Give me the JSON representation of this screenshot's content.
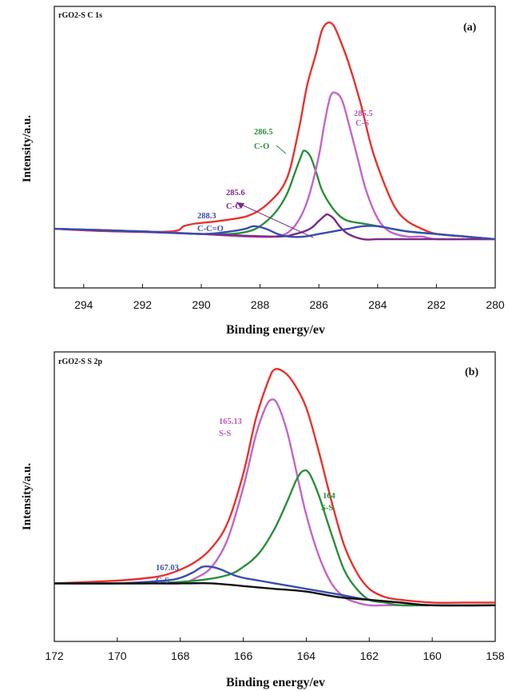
{
  "chart_data": [
    {
      "type": "line",
      "panel_label": "(a)",
      "corner_label": "rGO2-S   C 1s",
      "xlabel": "Binding energy/ev",
      "ylabel": "Intensity/a.u.",
      "xlim": [
        295,
        280
      ],
      "x_reversed": true,
      "ylim": [
        0,
        1
      ],
      "xticks": [
        294,
        292,
        290,
        288,
        286,
        284,
        282,
        280
      ],
      "grid": false,
      "legend": "none",
      "series": [
        {
          "color": "#e8322e",
          "x": [
            295,
            293,
            291,
            290.6,
            290.2,
            289.4,
            288.4,
            287.7,
            287.1,
            286.7,
            286.4,
            286.1,
            285.9,
            285.7,
            285.5,
            285.3,
            285.0,
            284.6,
            284.2,
            283.8,
            283.4,
            283.0,
            282.5,
            282.0,
            281.0,
            280.0
          ],
          "y": [
            0.19,
            0.18,
            0.18,
            0.2,
            0.21,
            0.22,
            0.24,
            0.29,
            0.38,
            0.56,
            0.74,
            0.86,
            0.95,
            0.98,
            0.97,
            0.92,
            0.83,
            0.68,
            0.5,
            0.37,
            0.27,
            0.22,
            0.19,
            0.17,
            0.16,
            0.15
          ]
        },
        {
          "color": "#2a8f3a",
          "x": [
            295,
            292,
            290,
            289.0,
            288.4,
            288.0,
            287.5,
            287.1,
            286.8,
            286.6,
            286.5,
            286.3,
            286.1,
            285.9,
            285.6,
            285.3,
            285.0,
            284.5,
            284.0,
            283.0,
            282.0,
            281.0,
            280.0
          ],
          "y": [
            0.19,
            0.18,
            0.17,
            0.17,
            0.18,
            0.2,
            0.25,
            0.32,
            0.41,
            0.47,
            0.49,
            0.47,
            0.41,
            0.34,
            0.28,
            0.24,
            0.22,
            0.21,
            0.2,
            0.18,
            0.17,
            0.16,
            0.15
          ]
        },
        {
          "color": "#c266c6",
          "x": [
            295,
            292,
            290,
            288.5,
            287.5,
            287.0,
            286.6,
            286.3,
            286.0,
            285.8,
            285.6,
            285.4,
            285.2,
            285.0,
            284.7,
            284.4,
            284.0,
            283.6,
            283.0,
            282.5,
            282.0,
            281.0,
            280.0
          ],
          "y": [
            0.19,
            0.18,
            0.17,
            0.16,
            0.16,
            0.18,
            0.24,
            0.33,
            0.47,
            0.6,
            0.7,
            0.71,
            0.68,
            0.6,
            0.47,
            0.34,
            0.23,
            0.18,
            0.16,
            0.16,
            0.15,
            0.15,
            0.15
          ]
        },
        {
          "color": "#7a2a88",
          "x": [
            295,
            290,
            287.5,
            286.8,
            286.3,
            286.0,
            285.8,
            285.7,
            285.5,
            285.3,
            285.0,
            284.5,
            284.0,
            283.0,
            282.0,
            280.0
          ],
          "y": [
            0.19,
            0.17,
            0.16,
            0.17,
            0.19,
            0.22,
            0.24,
            0.245,
            0.23,
            0.2,
            0.17,
            0.15,
            0.15,
            0.15,
            0.15,
            0.15
          ]
        },
        {
          "color": "#3a4cb0",
          "x": [
            295,
            292,
            290,
            289.0,
            288.5,
            288.2,
            287.8,
            287.4,
            287.0,
            286.5,
            286.0,
            285.5,
            285.0,
            284.5,
            284.0,
            283.5,
            283.0,
            282.0,
            281.0,
            280.0
          ],
          "y": [
            0.19,
            0.18,
            0.17,
            0.18,
            0.19,
            0.2,
            0.19,
            0.17,
            0.16,
            0.16,
            0.17,
            0.18,
            0.19,
            0.2,
            0.2,
            0.19,
            0.18,
            0.17,
            0.16,
            0.15
          ]
        }
      ],
      "annotations": [
        {
          "value": "285.5",
          "name": "C-S",
          "color": "#b858b8"
        },
        {
          "value": "286.5",
          "name": "C-O",
          "color": "#2a8f3a"
        },
        {
          "value": "285.6",
          "name": "C-C",
          "color": "#7a2a88"
        },
        {
          "value": "288.3",
          "name": "C-C=O",
          "color": "#3a4cb0"
        }
      ]
    },
    {
      "type": "line",
      "panel_label": "(b)",
      "corner_label": "rGO2-S   S 2p",
      "xlabel": "Binding energy/ev",
      "ylabel": "Intensity/a.u.",
      "xlim": [
        172,
        158
      ],
      "x_reversed": true,
      "ylim": [
        0,
        1
      ],
      "xticks": [
        172,
        170,
        168,
        166,
        164,
        162,
        160,
        158
      ],
      "grid": false,
      "legend": "none",
      "series": [
        {
          "color": "#e8322e",
          "x": [
            172,
            170,
            169,
            168.5,
            168.0,
            167.5,
            167.0,
            166.5,
            166.0,
            165.6,
            165.2,
            165.0,
            164.7,
            164.4,
            164.0,
            163.6,
            163.2,
            162.8,
            162.4,
            162.0,
            161.5,
            161.0,
            160.0,
            159.0,
            158.0
          ],
          "y": [
            0.2,
            0.21,
            0.22,
            0.23,
            0.25,
            0.28,
            0.33,
            0.42,
            0.6,
            0.8,
            0.94,
            0.98,
            0.97,
            0.93,
            0.84,
            0.68,
            0.5,
            0.34,
            0.24,
            0.18,
            0.15,
            0.14,
            0.13,
            0.13,
            0.13
          ]
        },
        {
          "color": "#c266c6",
          "x": [
            172,
            169,
            168.0,
            167.5,
            167.0,
            166.5,
            166.0,
            165.6,
            165.3,
            165.1,
            164.9,
            164.6,
            164.3,
            164.0,
            163.6,
            163.2,
            162.8,
            162.4,
            162.0,
            161.5,
            161.0,
            160.0,
            158.0
          ],
          "y": [
            0.2,
            0.2,
            0.2,
            0.22,
            0.26,
            0.36,
            0.55,
            0.74,
            0.84,
            0.87,
            0.85,
            0.75,
            0.6,
            0.45,
            0.3,
            0.2,
            0.15,
            0.13,
            0.12,
            0.12,
            0.12,
            0.12,
            0.12
          ]
        },
        {
          "color": "#2a8f3a",
          "x": [
            172,
            169,
            167.5,
            166.5,
            166.0,
            165.5,
            165.0,
            164.6,
            164.3,
            164.1,
            163.9,
            163.6,
            163.2,
            162.8,
            162.4,
            162.0,
            161.5,
            161.0,
            160.0,
            158.0
          ],
          "y": [
            0.2,
            0.2,
            0.21,
            0.23,
            0.26,
            0.31,
            0.4,
            0.5,
            0.58,
            0.61,
            0.6,
            0.52,
            0.38,
            0.25,
            0.18,
            0.14,
            0.13,
            0.12,
            0.12,
            0.12
          ]
        },
        {
          "color": "#3a4cb0",
          "x": [
            172,
            170,
            168.5,
            168.0,
            167.6,
            167.3,
            167.0,
            166.7,
            166.3,
            166.0,
            165.5,
            165.0,
            164.0,
            163.0,
            162.0,
            161.0,
            160.0,
            158.0
          ],
          "y": [
            0.2,
            0.2,
            0.21,
            0.22,
            0.24,
            0.26,
            0.26,
            0.25,
            0.23,
            0.22,
            0.21,
            0.2,
            0.18,
            0.16,
            0.14,
            0.13,
            0.12,
            0.12
          ]
        },
        {
          "color": "#111111",
          "x": [
            172,
            170,
            168,
            167,
            166,
            165,
            164,
            163,
            162,
            161,
            160,
            158
          ],
          "y": [
            0.2,
            0.2,
            0.2,
            0.2,
            0.19,
            0.18,
            0.17,
            0.15,
            0.14,
            0.13,
            0.12,
            0.12
          ]
        }
      ],
      "annotations": [
        {
          "value": "165.13",
          "name": "S-S",
          "color": "#b858b8"
        },
        {
          "value": "164",
          "name": "S-S",
          "color": "#2a8f3a"
        },
        {
          "value": "167.03",
          "name": "C-S",
          "color": "#3a4cb0"
        }
      ]
    }
  ]
}
